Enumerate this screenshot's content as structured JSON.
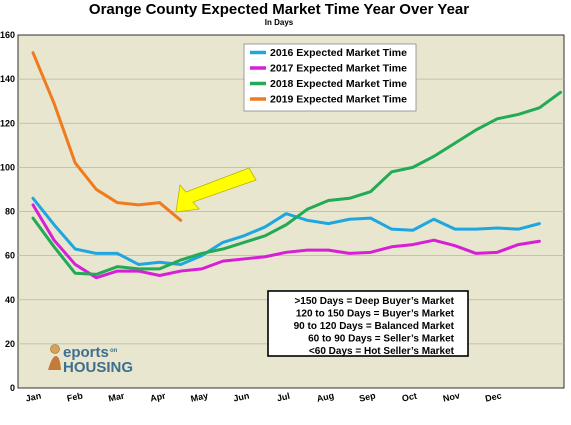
{
  "chart_data": {
    "type": "line",
    "title": "Orange County Expected Market Time Year Over Year",
    "subtitle": "In Days",
    "ylim": [
      0,
      160
    ],
    "yticks": [
      0,
      20,
      40,
      60,
      80,
      100,
      120,
      140,
      160
    ],
    "grid": true,
    "legend_position": "top-center",
    "month_labels": [
      "Jan",
      "Feb",
      "Mar",
      "Apr",
      "May",
      "Jun",
      "Jul",
      "Aug",
      "Sep",
      "Oct",
      "Nov",
      "Dec"
    ],
    "series": [
      {
        "name": "2016 Expected Market Time",
        "color": "#1ea7df",
        "values": [
          86,
          74,
          63,
          61,
          61,
          56,
          57,
          56,
          60,
          66,
          69,
          73,
          79,
          76,
          74.5,
          76.5,
          77,
          72,
          71.5,
          76.5,
          72,
          72,
          72.5,
          72,
          74.5
        ]
      },
      {
        "name": "2017 Expected Market Time",
        "color": "#d61fd6",
        "values": [
          83,
          67,
          56,
          50,
          53,
          53,
          51,
          53,
          54,
          57.5,
          58.5,
          59.5,
          61.5,
          62.5,
          62.5,
          61,
          61.5,
          64,
          65,
          67,
          64.5,
          61,
          61.5,
          65,
          66.5
        ]
      },
      {
        "name": "2018 Expected Market Time",
        "color": "#22aa55",
        "values": [
          77,
          64,
          52,
          51.5,
          55,
          54,
          54,
          58,
          61,
          63,
          66,
          69,
          74,
          81,
          85,
          86,
          89,
          98,
          100,
          105,
          111,
          117,
          122,
          124,
          127,
          134
        ]
      },
      {
        "name": "2019 Expected Market Time",
        "color": "#f07a1e",
        "values": [
          152,
          129,
          102,
          90,
          84,
          83,
          84,
          76
        ]
      }
    ],
    "annotation_lines": [
      ">150 Days = Deep Buyer’s Market",
      "120 to 150 Days = Buyer’s Market",
      "90 to 120 Days = Balanced Market",
      "60 to 90 Days = Seller’s Market",
      "<60 Days = Hot Seller’s Market"
    ]
  },
  "colors": {
    "plot_background": "#e8e6ce",
    "gridline": "#b8b6a0",
    "arrow": "#ffff00"
  },
  "logo": {
    "text_top": "eports",
    "text_on": "on",
    "text_bottom": "HOUSING"
  }
}
